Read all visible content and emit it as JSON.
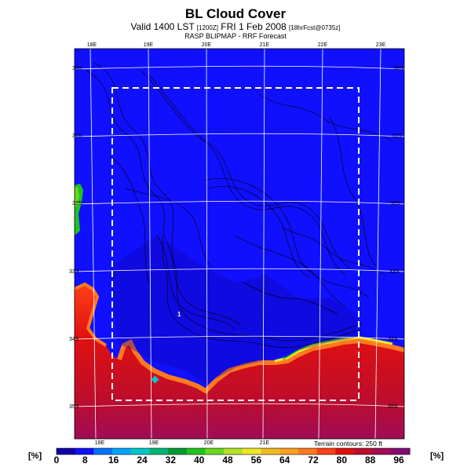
{
  "header": {
    "title": "BL Cloud Cover",
    "valid_prefix": "Valid 1400 LST",
    "valid_small": "[1200Z]",
    "valid_main": "FRI 1 Feb 2008",
    "valid_small2": "[18hrFcst@0735z]",
    "subtitle": "RASP BLIPMAP - RRF Forecast"
  },
  "map": {
    "top_lon_labels": [
      "18E",
      "19E",
      "20E",
      "21E",
      "22E",
      "23E"
    ],
    "bottom_lon_labels": [
      "18E",
      "19E",
      "20E",
      "21E"
    ],
    "left_lat_labels": [
      "30S",
      "31S",
      "32S",
      "33S",
      "34S",
      "35S"
    ],
    "right_lat_labels": [
      "30S",
      "31S",
      "32S",
      "33S",
      "34S",
      "35S"
    ],
    "marker_label": "1",
    "contour_note": "Terrain contours: 250 ft",
    "colors": {
      "ocean_low": "#1010ff",
      "land_high": "#ff1010"
    }
  },
  "colorbar": {
    "unit_left": "[%]",
    "unit_right": "[%]",
    "ticks": [
      "0",
      "8",
      "16",
      "24",
      "32",
      "40",
      "48",
      "56",
      "64",
      "72",
      "80",
      "88",
      "96"
    ],
    "colors": [
      "#0d00a6",
      "#1010ff",
      "#0073ff",
      "#00a5ff",
      "#00c8c8",
      "#00b478",
      "#009a34",
      "#1fc31f",
      "#6ad81c",
      "#b4e12a",
      "#f0e628",
      "#f0bb20",
      "#ffa021",
      "#ff7a1e",
      "#ff3f16",
      "#e01010",
      "#bc0d2d",
      "#a00c56",
      "#800c74"
    ]
  }
}
